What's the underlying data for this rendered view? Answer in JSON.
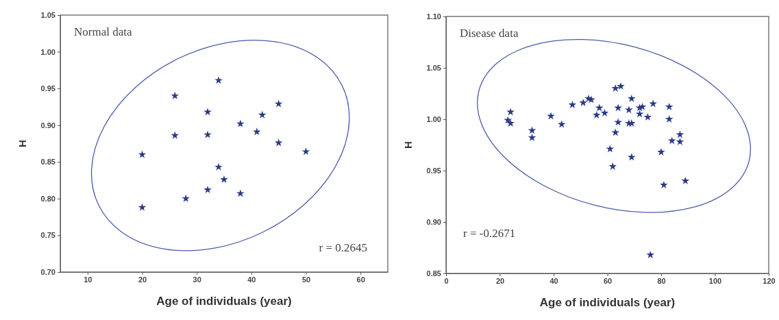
{
  "chart_data": [
    {
      "type": "scatter",
      "xlabel": "Age of individuals (year)",
      "ylabel": "H",
      "annotations": [
        "Normal data",
        "r = 0.2645"
      ],
      "marker": "star",
      "xlim": [
        5,
        65
      ],
      "xticks": [
        10,
        20,
        30,
        40,
        50,
        60
      ],
      "ylim": [
        0.7,
        1.05
      ],
      "yticks": [
        {
          "value": 0.7,
          "label": "0.70"
        },
        {
          "value": 0.75,
          "label": "0.75"
        },
        {
          "value": 0.8,
          "label": "0.80"
        },
        {
          "value": 0.85,
          "label": "0.85"
        },
        {
          "value": 0.9,
          "label": "0.90"
        },
        {
          "value": 0.95,
          "label": "0.95"
        },
        {
          "value": 1.0,
          "label": "1.00"
        },
        {
          "value": 1.05,
          "label": "1.05"
        }
      ],
      "series": [
        {
          "color": "#2b3a8a",
          "x": [
            20,
            20,
            26,
            26,
            28,
            32,
            32,
            32,
            34,
            34,
            35,
            38,
            38,
            41,
            42,
            45,
            45,
            50
          ],
          "values": [
            0.86,
            0.788,
            0.94,
            0.886,
            0.8,
            0.918,
            0.887,
            0.812,
            0.961,
            0.843,
            0.826,
            0.902,
            0.807,
            0.891,
            0.914,
            0.929,
            0.876,
            0.864
          ]
        }
      ]
    },
    {
      "type": "scatter",
      "xlabel": "Age of individuals (year)",
      "ylabel": "H",
      "annotations": [
        "Disease data",
        "r = -0.2671"
      ],
      "marker": "star",
      "xlim": [
        0,
        120
      ],
      "xticks": [
        0,
        20,
        40,
        60,
        80,
        100,
        120
      ],
      "ylim": [
        0.85,
        1.1
      ],
      "yticks": [
        {
          "value": 0.85,
          "label": "0.85"
        },
        {
          "value": 0.9,
          "label": "0.90"
        },
        {
          "value": 0.95,
          "label": "0.95"
        },
        {
          "value": 1.0,
          "label": "1.00"
        },
        {
          "value": 1.05,
          "label": "1.05"
        },
        {
          "value": 1.1,
          "label": "1.10"
        }
      ],
      "series": [
        {
          "color": "#2b3a8a",
          "x": [
            23,
            24,
            24,
            32,
            32,
            39,
            43,
            47,
            51,
            53,
            54,
            56,
            57,
            59,
            61,
            62,
            63,
            63,
            65,
            64,
            64,
            68,
            68,
            69,
            69,
            69,
            72,
            73,
            72,
            75,
            77,
            76,
            80,
            81,
            83,
            83,
            84,
            87,
            87,
            89
          ],
          "values": [
            0.999,
            1.007,
            0.996,
            0.989,
            0.982,
            1.003,
            0.995,
            1.014,
            1.016,
            1.02,
            1.019,
            1.004,
            1.011,
            1.006,
            0.971,
            0.954,
            0.987,
            1.03,
            1.032,
            1.011,
            0.997,
            1.009,
            0.996,
            0.996,
            1.02,
            0.963,
            1.011,
            1.012,
            1.005,
            1.002,
            1.015,
            0.868,
            0.968,
            0.936,
            1.012,
            1.0,
            0.979,
            0.985,
            0.978,
            0.94
          ]
        }
      ]
    }
  ]
}
